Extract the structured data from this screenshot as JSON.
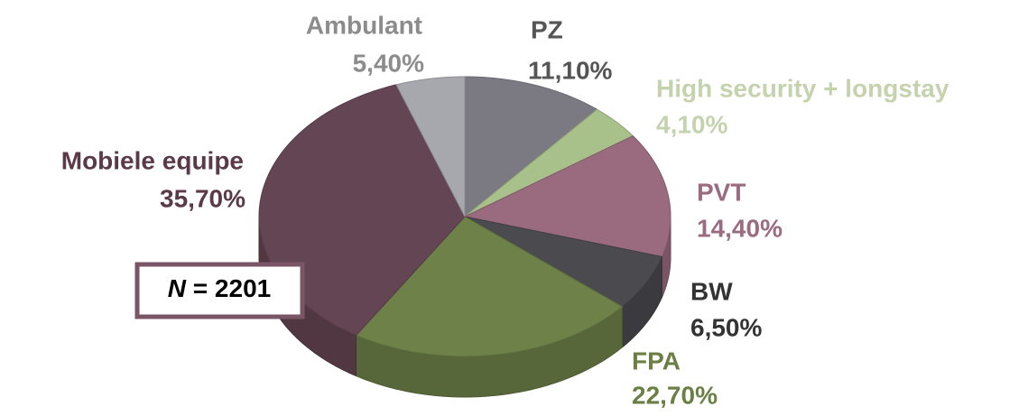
{
  "chart_data": {
    "type": "pie",
    "categories": [
      "PZ",
      "High security + longstay",
      "PVT",
      "BW",
      "FPA",
      "Mobiele equipe",
      "Ambulant"
    ],
    "values": [
      11.1,
      4.1,
      14.4,
      6.5,
      22.7,
      35.7,
      5.4
    ],
    "value_labels": [
      "11,10%",
      "4,10%",
      "14,40%",
      "6,50%",
      "22,70%",
      "35,70%",
      "5,40%"
    ],
    "colors": [
      "#7b7982",
      "#a8c08a",
      "#9a6a7f",
      "#4a4a4f",
      "#6d8149",
      "#644553",
      "#a7a7ae"
    ],
    "label_colors": [
      "#555555",
      "#c4d2ad",
      "#9b6b80",
      "#333333",
      "#6b7f45",
      "#5a3a48",
      "#8c8c8c"
    ],
    "annotation_symbol": "N",
    "annotation_text": "= 2201"
  }
}
